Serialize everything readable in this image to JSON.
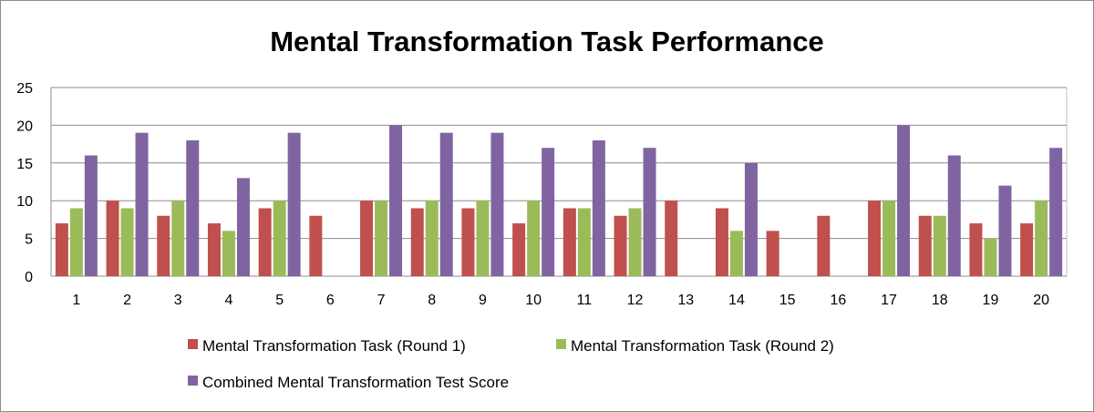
{
  "chart_data": {
    "type": "bar",
    "title": "Mental Transformation Task Performance",
    "xlabel": "",
    "ylabel": "",
    "ylim": [
      0,
      25
    ],
    "yticks": [
      0,
      5,
      10,
      15,
      20,
      25
    ],
    "grid": true,
    "legend_position": "bottom",
    "categories": [
      "1",
      "2",
      "3",
      "4",
      "5",
      "6",
      "7",
      "8",
      "9",
      "10",
      "11",
      "12",
      "13",
      "14",
      "15",
      "16",
      "17",
      "18",
      "19",
      "20"
    ],
    "series": [
      {
        "name": "Mental Transformation Task (Round 1)",
        "color": "#c0504d",
        "values": [
          7,
          10,
          8,
          7,
          9,
          8,
          10,
          9,
          9,
          7,
          9,
          8,
          10,
          9,
          6,
          8,
          10,
          8,
          7,
          7
        ]
      },
      {
        "name": "Mental Transformation Task (Round 2)",
        "color": "#9bbb59",
        "values": [
          9,
          9,
          10,
          6,
          10,
          0,
          10,
          10,
          10,
          10,
          9,
          9,
          0,
          6,
          0,
          0,
          10,
          8,
          5,
          10
        ]
      },
      {
        "name": "Combined Mental Transformation Test Score",
        "color": "#8064a2",
        "values": [
          16,
          19,
          18,
          13,
          19,
          0,
          20,
          19,
          19,
          17,
          18,
          17,
          0,
          15,
          0,
          0,
          20,
          16,
          12,
          17
        ]
      }
    ]
  }
}
